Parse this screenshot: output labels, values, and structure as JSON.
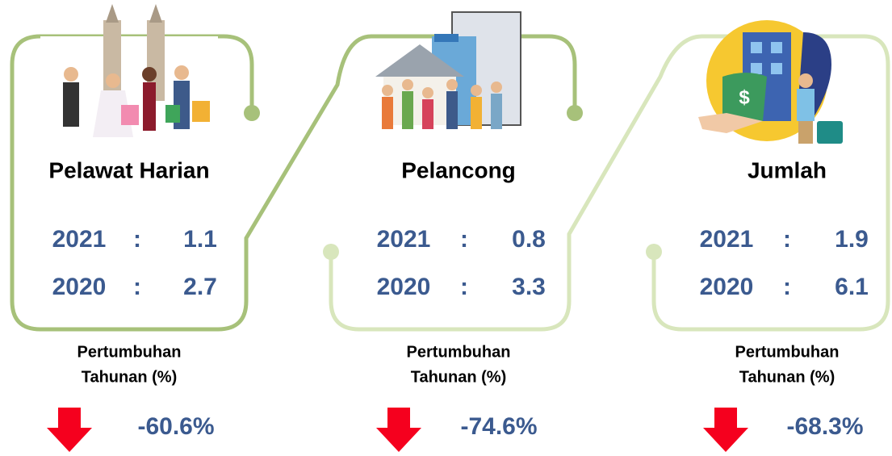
{
  "panels": [
    {
      "title": "Pelawat Harian",
      "rows": [
        {
          "year": "2021",
          "separator": ":",
          "value": "1.1"
        },
        {
          "year": "2020",
          "separator": ":",
          "value": "2.7"
        }
      ],
      "growth_label": [
        "Pertumbuhan",
        "Tahunan (%)"
      ],
      "growth": "-60.6%"
    },
    {
      "title": "Pelancong",
      "rows": [
        {
          "year": "2021",
          "separator": ":",
          "value": "0.8"
        },
        {
          "year": "2020",
          "separator": ":",
          "value": "3.3"
        }
      ],
      "growth_label": [
        "Pertumbuhan",
        "Tahunan (%)"
      ],
      "growth": "-74.6%"
    },
    {
      "title": "Jumlah",
      "rows": [
        {
          "year": "2021",
          "separator": ":",
          "value": "1.9"
        },
        {
          "year": "2020",
          "separator": ":",
          "value": "6.1"
        }
      ],
      "growth_label": [
        "Pertumbuhan",
        "Tahunan (%)"
      ],
      "growth": "-68.3%"
    }
  ]
}
